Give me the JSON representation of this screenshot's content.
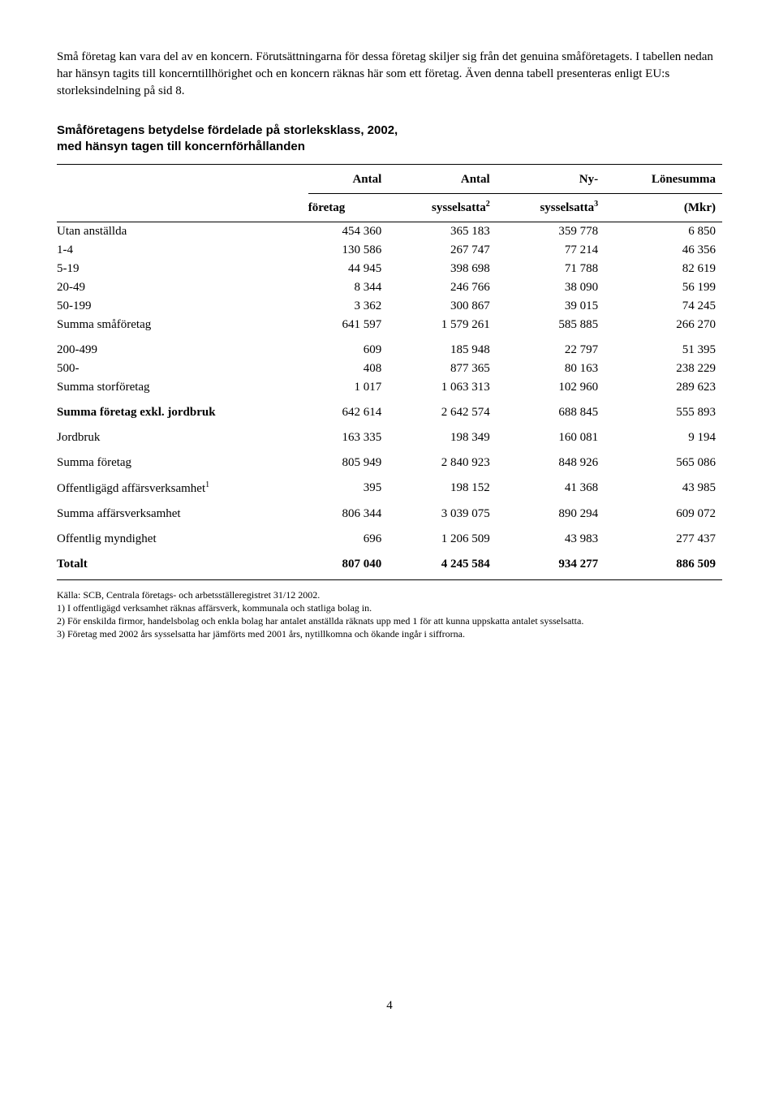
{
  "intro": "Små företag kan vara del av en koncern. Förutsättningarna för dessa företag skiljer sig från det genuina småföretagets. I tabellen nedan har hänsyn tagits till koncerntillhörighet och en koncern räknas här som ett företag. Även denna tabell presenteras enligt EU:s storleksindelning på sid 8.",
  "table_title_l1": "Småföretagens betydelse fördelade på storleksklass, 2002,",
  "table_title_l2": "med hänsyn tagen till koncernförhållanden",
  "headers": {
    "c1a": "Antal",
    "c1b": "företag",
    "c2a": "Antal",
    "c2b": "sysselsatta",
    "c3a": "Ny-",
    "c3b": "sysselsatta",
    "c4a": "Lönesumma",
    "c4b": "(Mkr)"
  },
  "rows": [
    {
      "label": "Utan anställda",
      "v": [
        "454 360",
        "365 183",
        "359 778",
        "6 850"
      ]
    },
    {
      "label": "1-4",
      "v": [
        "130 586",
        "267 747",
        "77 214",
        "46 356"
      ]
    },
    {
      "label": "5-19",
      "v": [
        "44 945",
        "398 698",
        "71 788",
        "82 619"
      ]
    },
    {
      "label": "20-49",
      "v": [
        "8 344",
        "246 766",
        "38 090",
        "56 199"
      ]
    },
    {
      "label": "50-199",
      "v": [
        "3 362",
        "300 867",
        "39 015",
        "74 245"
      ]
    },
    {
      "label": "Summa småföretag",
      "v": [
        "641 597",
        "1 579 261",
        "585 885",
        "266 270"
      ]
    }
  ],
  "rows2": [
    {
      "label": "200-499",
      "v": [
        "609",
        "185 948",
        "22 797",
        "51 395"
      ]
    },
    {
      "label": "500-",
      "v": [
        "408",
        "877 365",
        "80 163",
        "238 229"
      ]
    },
    {
      "label": "Summa storföretag",
      "v": [
        "1 017",
        "1 063 313",
        "102 960",
        "289 623"
      ]
    }
  ],
  "rows3": [
    {
      "label": "Summa företag exkl. jordbruk",
      "v": [
        "642 614",
        "2 642 574",
        "688 845",
        "555 893"
      ],
      "bold": true
    },
    {
      "label": "Jordbruk",
      "v": [
        "163 335",
        "198 349",
        "160 081",
        "9 194"
      ]
    },
    {
      "label": "Summa företag",
      "v": [
        "805 949",
        "2 840 923",
        "848 926",
        "565 086"
      ]
    },
    {
      "label": "Offentligägd affärsverksamhet",
      "sup": "1",
      "v": [
        "395",
        "198 152",
        "41 368",
        "43 985"
      ]
    },
    {
      "label": "Summa affärsverksamhet",
      "v": [
        "806 344",
        "3 039 075",
        "890 294",
        "609 072"
      ]
    },
    {
      "label": "Offentlig myndighet",
      "v": [
        "696",
        "1 206 509",
        "43 983",
        "277 437"
      ]
    },
    {
      "label": "Totalt",
      "v": [
        "807 040",
        "4 245 584",
        "934 277",
        "886 509"
      ],
      "totalt": true
    }
  ],
  "footnotes": [
    "Källa: SCB, Centrala företags- och arbetsställeregistret 31/12 2002.",
    "1) I offentligägd verksamhet räknas affärsverk, kommunala och statliga bolag in.",
    "2) För enskilda firmor, handelsbolag och enkla bolag har antalet anställda räknats upp med 1 för att kunna uppskatta antalet sysselsatta.",
    "3) Företag med 2002 års sysselsatta har jämförts med 2001 års, nytillkomna och ökande ingår i siffrorna."
  ],
  "page_num": "4"
}
